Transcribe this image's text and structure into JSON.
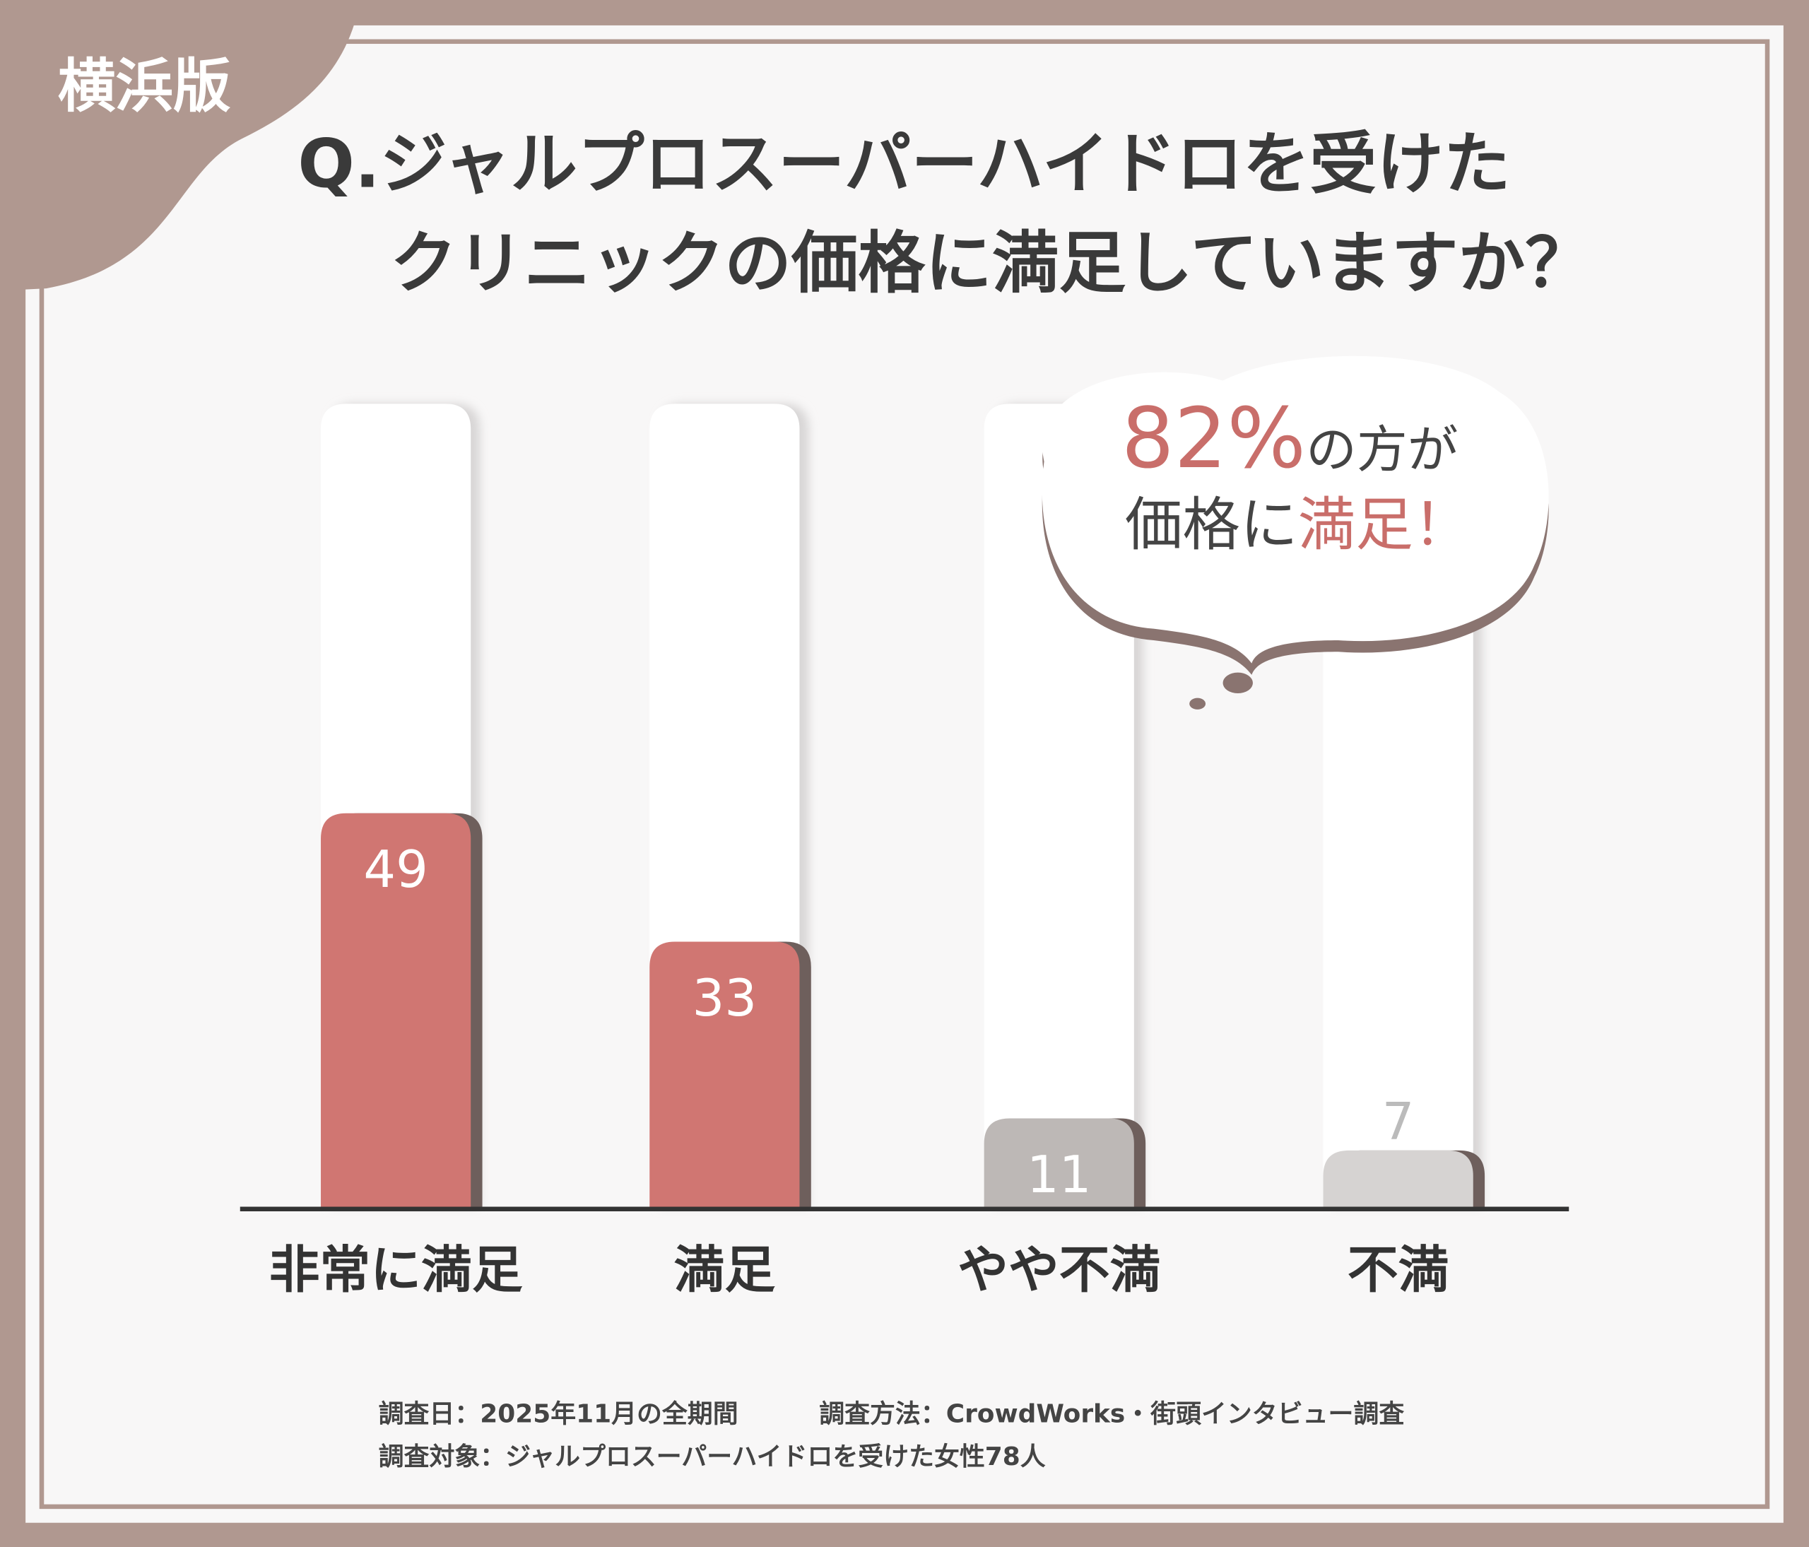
{
  "badge": "横浜版",
  "chart_data": {
    "type": "bar",
    "title": [
      "Q.ジャルプロスーパーハイドロを受けた",
      "クリニックの価格に満足していますか？"
    ],
    "categories": [
      "非常に満足",
      "満足",
      "やや不満",
      "不満"
    ],
    "values": [
      49,
      33,
      11,
      7
    ],
    "colors": [
      "#d07672",
      "#d07672",
      "#bdb8b6",
      "#d6d3d2"
    ],
    "ylim": [
      0,
      100
    ],
    "callout": [
      [
        {
          "text": "82%",
          "color": "#c96e6a"
        },
        {
          "text": "の方が",
          "color": "#444444"
        }
      ],
      [
        {
          "text": "価格に",
          "color": "#444444"
        },
        {
          "text": "満足！",
          "color": "#c96e6a"
        }
      ]
    ]
  },
  "footer": [
    "調査日：2025年11月の全期間",
    "調査方法：CrowdWorks・街頭インタビュー調査",
    "調査対象：ジャルプロスーパーハイドロを受けた女性78人"
  ]
}
